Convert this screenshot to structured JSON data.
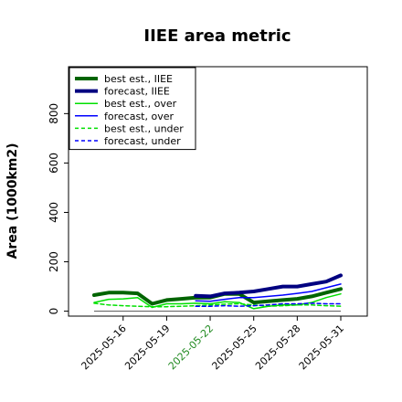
{
  "chart_data": {
    "type": "line",
    "title": "IIEE area metric",
    "ylabel": "Area (1000km2)",
    "xlabel": "",
    "ylim": [
      -20,
      990
    ],
    "yticks": [
      0,
      200,
      400,
      600,
      800
    ],
    "x": [
      "2025-05-14",
      "2025-05-15",
      "2025-05-16",
      "2025-05-17",
      "2025-05-18",
      "2025-05-19",
      "2025-05-20",
      "2025-05-21",
      "2025-05-22",
      "2025-05-23",
      "2025-05-24",
      "2025-05-25",
      "2025-05-26",
      "2025-05-27",
      "2025-05-28",
      "2025-05-29",
      "2025-05-30",
      "2025-05-31"
    ],
    "xticks": [
      "2025-05-16",
      "2025-05-19",
      "2025-05-22",
      "2025-05-25",
      "2025-05-28",
      "2025-05-31"
    ],
    "xtick_colors": [
      "#000000",
      "#000000",
      "#228b22",
      "#000000",
      "#000000",
      "#000000"
    ],
    "baseline": 0,
    "legend_position": "upper left",
    "grid": false,
    "series": [
      {
        "name": "best est., IIEE",
        "color": "#006400",
        "dash": "solid",
        "width": 4,
        "values": [
          65,
          75,
          75,
          72,
          30,
          45,
          50,
          55,
          55,
          70,
          70,
          35,
          40,
          45,
          50,
          60,
          75,
          90
        ]
      },
      {
        "name": "forecast, IIEE",
        "color": "#000080",
        "dash": "solid",
        "width": 4,
        "values": [
          null,
          null,
          null,
          null,
          null,
          null,
          null,
          62,
          60,
          72,
          75,
          80,
          90,
          100,
          100,
          110,
          120,
          145
        ]
      },
      {
        "name": "best est., over",
        "color": "#00e000",
        "dash": "solid",
        "width": 1.5,
        "values": [
          35,
          48,
          50,
          55,
          15,
          30,
          30,
          32,
          30,
          38,
          35,
          10,
          20,
          25,
          25,
          35,
          55,
          70
        ]
      },
      {
        "name": "forecast, over",
        "color": "#0000ff",
        "dash": "solid",
        "width": 1.5,
        "values": [
          null,
          null,
          null,
          null,
          null,
          null,
          null,
          42,
          40,
          48,
          55,
          55,
          60,
          65,
          72,
          80,
          95,
          110
        ]
      },
      {
        "name": "best est., under",
        "color": "#00e000",
        "dash": "dashed",
        "width": 1.5,
        "values": [
          32,
          25,
          22,
          20,
          18,
          18,
          20,
          22,
          25,
          28,
          30,
          25,
          20,
          22,
          25,
          25,
          22,
          20
        ]
      },
      {
        "name": "forecast, under",
        "color": "#0000ff",
        "dash": "dashed",
        "width": 1.5,
        "values": [
          null,
          null,
          null,
          null,
          null,
          null,
          null,
          20,
          20,
          22,
          20,
          22,
          25,
          30,
          30,
          32,
          30,
          30
        ]
      }
    ]
  }
}
